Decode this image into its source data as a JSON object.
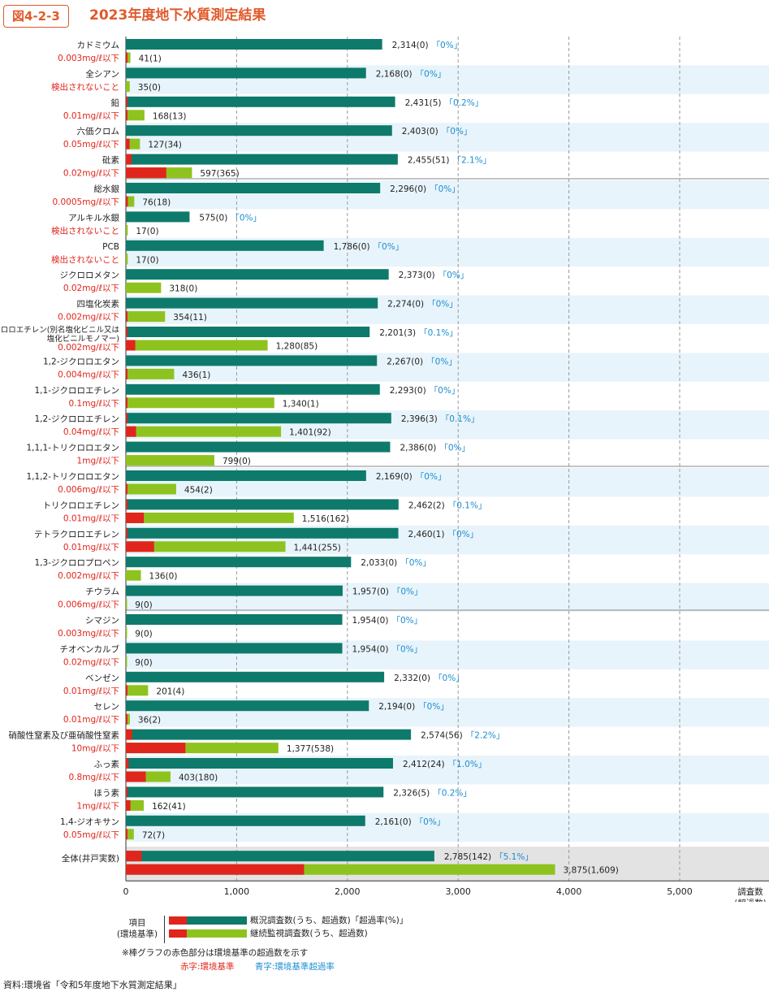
{
  "header": {
    "badge": "図4-2-3",
    "title": "2023年度地下水質測定結果"
  },
  "colors": {
    "teal": "#0e7a6b",
    "green": "#8ec31f",
    "red": "#e0261c",
    "rate_blue": "#1a8dd0",
    "stripe": "#e8f4fb",
    "total_bg": "#e3e3e3"
  },
  "chart_data": {
    "type": "bar",
    "orientation": "horizontal",
    "xlim": [
      0,
      5500
    ],
    "x_ticks": [
      "0",
      "1,000",
      "2,000",
      "3,000",
      "4,000",
      "5,000"
    ],
    "x_tick_values": [
      0,
      1000,
      2000,
      3000,
      4000,
      5000
    ],
    "x_unit_label": [
      "調査数",
      "(超過数)"
    ],
    "series": [
      {
        "name": "概況調査数(うち、超過数)「超過率(%)」"
      },
      {
        "name": "継続監視調査数(うち、超過数)"
      }
    ],
    "items": [
      {
        "name": "カドミウム",
        "standard": "0.003mg/ℓ以下",
        "survey": 2314,
        "survey_exceed": 0,
        "survey_label": "2,314(0)",
        "rate": "「0%」",
        "monitor": 41,
        "monitor_exceed": 1,
        "monitor_label": "41(1)"
      },
      {
        "name": "全シアン",
        "standard": "検出されないこと",
        "survey": 2168,
        "survey_exceed": 0,
        "survey_label": "2,168(0)",
        "rate": "「0%」",
        "monitor": 35,
        "monitor_exceed": 0,
        "monitor_label": "35(0)"
      },
      {
        "name": "鉛",
        "standard": "0.01mg/ℓ以下",
        "survey": 2431,
        "survey_exceed": 5,
        "survey_label": "2,431(5)",
        "rate": "「0.2%」",
        "monitor": 168,
        "monitor_exceed": 13,
        "monitor_label": "168(13)"
      },
      {
        "name": "六価クロム",
        "standard": "0.05mg/ℓ以下",
        "survey": 2403,
        "survey_exceed": 0,
        "survey_label": "2,403(0)",
        "rate": "「0%」",
        "monitor": 127,
        "monitor_exceed": 34,
        "monitor_label": "127(34)"
      },
      {
        "name": "砒素",
        "standard": "0.02mg/ℓ以下",
        "survey": 2455,
        "survey_exceed": 51,
        "survey_label": "2,455(51)",
        "rate": "「2.1%」",
        "monitor": 597,
        "monitor_exceed": 365,
        "monitor_label": "597(365)"
      },
      {
        "name": "総水銀",
        "standard": "0.0005mg/ℓ以下",
        "survey": 2296,
        "survey_exceed": 0,
        "survey_label": "2,296(0)",
        "rate": "「0%」",
        "monitor": 76,
        "monitor_exceed": 18,
        "monitor_label": "76(18)"
      },
      {
        "name": "アルキル水銀",
        "standard": "検出されないこと",
        "survey": 575,
        "survey_exceed": 0,
        "survey_label": "575(0)",
        "rate": "「0%」",
        "monitor": 17,
        "monitor_exceed": 0,
        "monitor_label": "17(0)"
      },
      {
        "name": "PCB",
        "standard": "検出されないこと",
        "survey": 1786,
        "survey_exceed": 0,
        "survey_label": "1,786(0)",
        "rate": "「0%」",
        "monitor": 17,
        "monitor_exceed": 0,
        "monitor_label": "17(0)"
      },
      {
        "name": "ジクロロメタン",
        "standard": "0.02mg/ℓ以下",
        "survey": 2373,
        "survey_exceed": 0,
        "survey_label": "2,373(0)",
        "rate": "「0%」",
        "monitor": 318,
        "monitor_exceed": 0,
        "monitor_label": "318(0)"
      },
      {
        "name": "四塩化炭素",
        "standard": "0.002mg/ℓ以下",
        "survey": 2274,
        "survey_exceed": 0,
        "survey_label": "2,274(0)",
        "rate": "「0%」",
        "monitor": 354,
        "monitor_exceed": 11,
        "monitor_label": "354(11)"
      },
      {
        "name": "クロロエチレン(別名塩化ビニル又は塩化ビニルモノマー)",
        "name_lines": [
          "クロロエチレン(別名塩化ビニル又は",
          "塩化ビニルモノマー)"
        ],
        "standard": "0.002mg/ℓ以下",
        "survey": 2201,
        "survey_exceed": 3,
        "survey_label": "2,201(3)",
        "rate": "「0.1%」",
        "monitor": 1280,
        "monitor_exceed": 85,
        "monitor_label": "1,280(85)"
      },
      {
        "name": "1,2-ジクロロエタン",
        "standard": "0.004mg/ℓ以下",
        "survey": 2267,
        "survey_exceed": 0,
        "survey_label": "2,267(0)",
        "rate": "「0%」",
        "monitor": 436,
        "monitor_exceed": 1,
        "monitor_label": "436(1)"
      },
      {
        "name": "1,1-ジクロロエチレン",
        "standard": "0.1mg/ℓ以下",
        "survey": 2293,
        "survey_exceed": 0,
        "survey_label": "2,293(0)",
        "rate": "「0%」",
        "monitor": 1340,
        "monitor_exceed": 1,
        "monitor_label": "1,340(1)"
      },
      {
        "name": "1,2-ジクロロエチレン",
        "standard": "0.04mg/ℓ以下",
        "survey": 2396,
        "survey_exceed": 3,
        "survey_label": "2,396(3)",
        "rate": "「0.1%」",
        "monitor": 1401,
        "monitor_exceed": 92,
        "monitor_label": "1,401(92)"
      },
      {
        "name": "1,1,1-トリクロロエタン",
        "standard": "1mg/ℓ以下",
        "survey": 2386,
        "survey_exceed": 0,
        "survey_label": "2,386(0)",
        "rate": "「0%」",
        "monitor": 799,
        "monitor_exceed": 0,
        "monitor_label": "799(0)"
      },
      {
        "name": "1,1,2-トリクロロエタン",
        "standard": "0.006mg/ℓ以下",
        "survey": 2169,
        "survey_exceed": 0,
        "survey_label": "2,169(0)",
        "rate": "「0%」",
        "monitor": 454,
        "monitor_exceed": 2,
        "monitor_label": "454(2)"
      },
      {
        "name": "トリクロロエチレン",
        "standard": "0.01mg/ℓ以下",
        "survey": 2462,
        "survey_exceed": 2,
        "survey_label": "2,462(2)",
        "rate": "「0.1%」",
        "monitor": 1516,
        "monitor_exceed": 162,
        "monitor_label": "1,516(162)"
      },
      {
        "name": "テトラクロロエチレン",
        "standard": "0.01mg/ℓ以下",
        "survey": 2460,
        "survey_exceed": 1,
        "survey_label": "2,460(1)",
        "rate": "「0%」",
        "monitor": 1441,
        "monitor_exceed": 255,
        "monitor_label": "1,441(255)"
      },
      {
        "name": "1,3-ジクロロプロペン",
        "standard": "0.002mg/ℓ以下",
        "survey": 2033,
        "survey_exceed": 0,
        "survey_label": "2,033(0)",
        "rate": "「0%」",
        "monitor": 136,
        "monitor_exceed": 0,
        "monitor_label": "136(0)"
      },
      {
        "name": "チウラム",
        "standard": "0.006mg/ℓ以下",
        "survey": 1957,
        "survey_exceed": 0,
        "survey_label": "1,957(0)",
        "rate": "「0%」",
        "monitor": 9,
        "monitor_exceed": 0,
        "monitor_label": "9(0)"
      },
      {
        "name": "シマジン",
        "standard": "0.003mg/ℓ以下",
        "survey": 1954,
        "survey_exceed": 0,
        "survey_label": "1,954(0)",
        "rate": "「0%」",
        "monitor": 9,
        "monitor_exceed": 0,
        "monitor_label": "9(0)"
      },
      {
        "name": "チオベンカルブ",
        "standard": "0.02mg/ℓ以下",
        "survey": 1954,
        "survey_exceed": 0,
        "survey_label": "1,954(0)",
        "rate": "「0%」",
        "monitor": 9,
        "monitor_exceed": 0,
        "monitor_label": "9(0)"
      },
      {
        "name": "ベンゼン",
        "standard": "0.01mg/ℓ以下",
        "survey": 2332,
        "survey_exceed": 0,
        "survey_label": "2,332(0)",
        "rate": "「0%」",
        "monitor": 201,
        "monitor_exceed": 4,
        "monitor_label": "201(4)"
      },
      {
        "name": "セレン",
        "standard": "0.01mg/ℓ以下",
        "survey": 2194,
        "survey_exceed": 0,
        "survey_label": "2,194(0)",
        "rate": "「0%」",
        "monitor": 36,
        "monitor_exceed": 2,
        "monitor_label": "36(2)"
      },
      {
        "name": "硝酸性窒素及び亜硝酸性窒素",
        "standard": "10mg/ℓ以下",
        "survey": 2574,
        "survey_exceed": 56,
        "survey_label": "2,574(56)",
        "rate": "「2.2%」",
        "monitor": 1377,
        "monitor_exceed": 538,
        "monitor_label": "1,377(538)"
      },
      {
        "name": "ふっ素",
        "standard": "0.8mg/ℓ以下",
        "survey": 2412,
        "survey_exceed": 24,
        "survey_label": "2,412(24)",
        "rate": "「1.0%」",
        "monitor": 403,
        "monitor_exceed": 180,
        "monitor_label": "403(180)"
      },
      {
        "name": "ほう素",
        "standard": "1mg/ℓ以下",
        "survey": 2326,
        "survey_exceed": 5,
        "survey_label": "2,326(5)",
        "rate": "「0.2%」",
        "monitor": 162,
        "monitor_exceed": 41,
        "monitor_label": "162(41)"
      },
      {
        "name": "1,4-ジオキサン",
        "standard": "0.05mg/ℓ以下",
        "survey": 2161,
        "survey_exceed": 0,
        "survey_label": "2,161(0)",
        "rate": "「0%」",
        "monitor": 72,
        "monitor_exceed": 7,
        "monitor_label": "72(7)"
      }
    ],
    "total": {
      "name": "全体(井戸実数)",
      "survey": 2785,
      "survey_exceed": 142,
      "survey_label": "2,785(142)",
      "rate": "「5.1%」",
      "monitor": 3875,
      "monitor_exceed": 1609,
      "monitor_label": "3,875(1,609)"
    }
  },
  "legend": {
    "item_label": "項目",
    "item_sub": "(環境基準)",
    "survey_text": "概況調査数(うち、超過数)「超過率(%)」",
    "monitor_text": "継続監視調査数(うち、超過数)"
  },
  "notes": {
    "note": "※棒グラフの赤色部分は環境基準の超過数を示す",
    "red_label": "赤字:環境基準",
    "blue_label": "青字:環境基準超過率"
  },
  "source": "資料:環境省「令和5年度地下水質測定結果」"
}
